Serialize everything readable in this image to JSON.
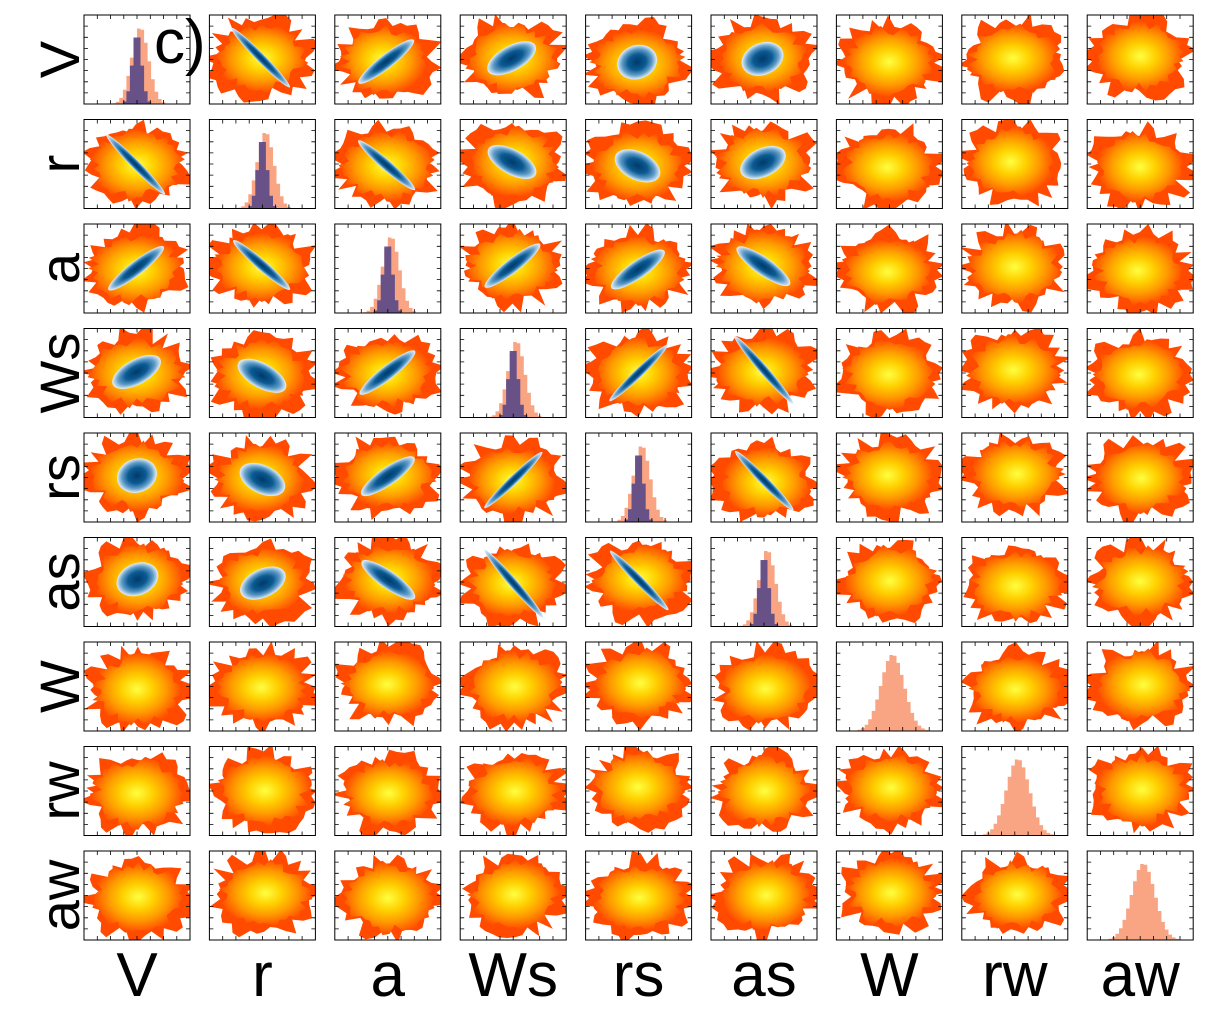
{
  "panel_label": "c)",
  "chart_data": {
    "type": "corner",
    "variables": [
      "V",
      "r",
      "a",
      "Ws",
      "rs",
      "as",
      "W",
      "rw",
      "aw"
    ],
    "colors": {
      "hist_prior": "#f9a583",
      "hist_posterior": "#5b4a88",
      "density_outer": "#ff4a00",
      "density_mid": "#ff9a00",
      "density_core": "#ffff40",
      "posterior_edge": "#e8f0f8",
      "posterior_core": "#003a6a"
    },
    "diagonal_histograms": [
      {
        "variable": "V",
        "prior": true,
        "posterior": true
      },
      {
        "variable": "r",
        "prior": true,
        "posterior": true
      },
      {
        "variable": "a",
        "prior": true,
        "posterior": true
      },
      {
        "variable": "Ws",
        "prior": true,
        "posterior": true
      },
      {
        "variable": "rs",
        "prior": true,
        "posterior": true
      },
      {
        "variable": "as",
        "prior": true,
        "posterior": true
      },
      {
        "variable": "W",
        "prior": true,
        "posterior": false
      },
      {
        "variable": "rw",
        "prior": true,
        "posterior": false
      },
      {
        "variable": "aw",
        "prior": true,
        "posterior": false
      }
    ],
    "posterior_correlations": [
      {
        "x": "r",
        "y": "V",
        "rho": -0.85
      },
      {
        "x": "a",
        "y": "V",
        "rho": 0.6
      },
      {
        "x": "Ws",
        "y": "V",
        "rho": 0.3
      },
      {
        "x": "rs",
        "y": "V",
        "rho": 0.05
      },
      {
        "x": "as",
        "y": "V",
        "rho": 0.1
      },
      {
        "x": "a",
        "y": "r",
        "rho": -0.7
      },
      {
        "x": "Ws",
        "y": "r",
        "rho": -0.3
      },
      {
        "x": "rs",
        "y": "r",
        "rho": -0.2
      },
      {
        "x": "as",
        "y": "r",
        "rho": 0.2
      },
      {
        "x": "Ws",
        "y": "a",
        "rho": 0.6
      },
      {
        "x": "rs",
        "y": "a",
        "rho": 0.5
      },
      {
        "x": "as",
        "y": "a",
        "rho": -0.5
      },
      {
        "x": "rs",
        "y": "Ws",
        "rho": 0.8
      },
      {
        "x": "as",
        "y": "Ws",
        "rho": -0.97
      },
      {
        "x": "as",
        "y": "rs",
        "rho": -0.85
      }
    ],
    "grid": false
  }
}
